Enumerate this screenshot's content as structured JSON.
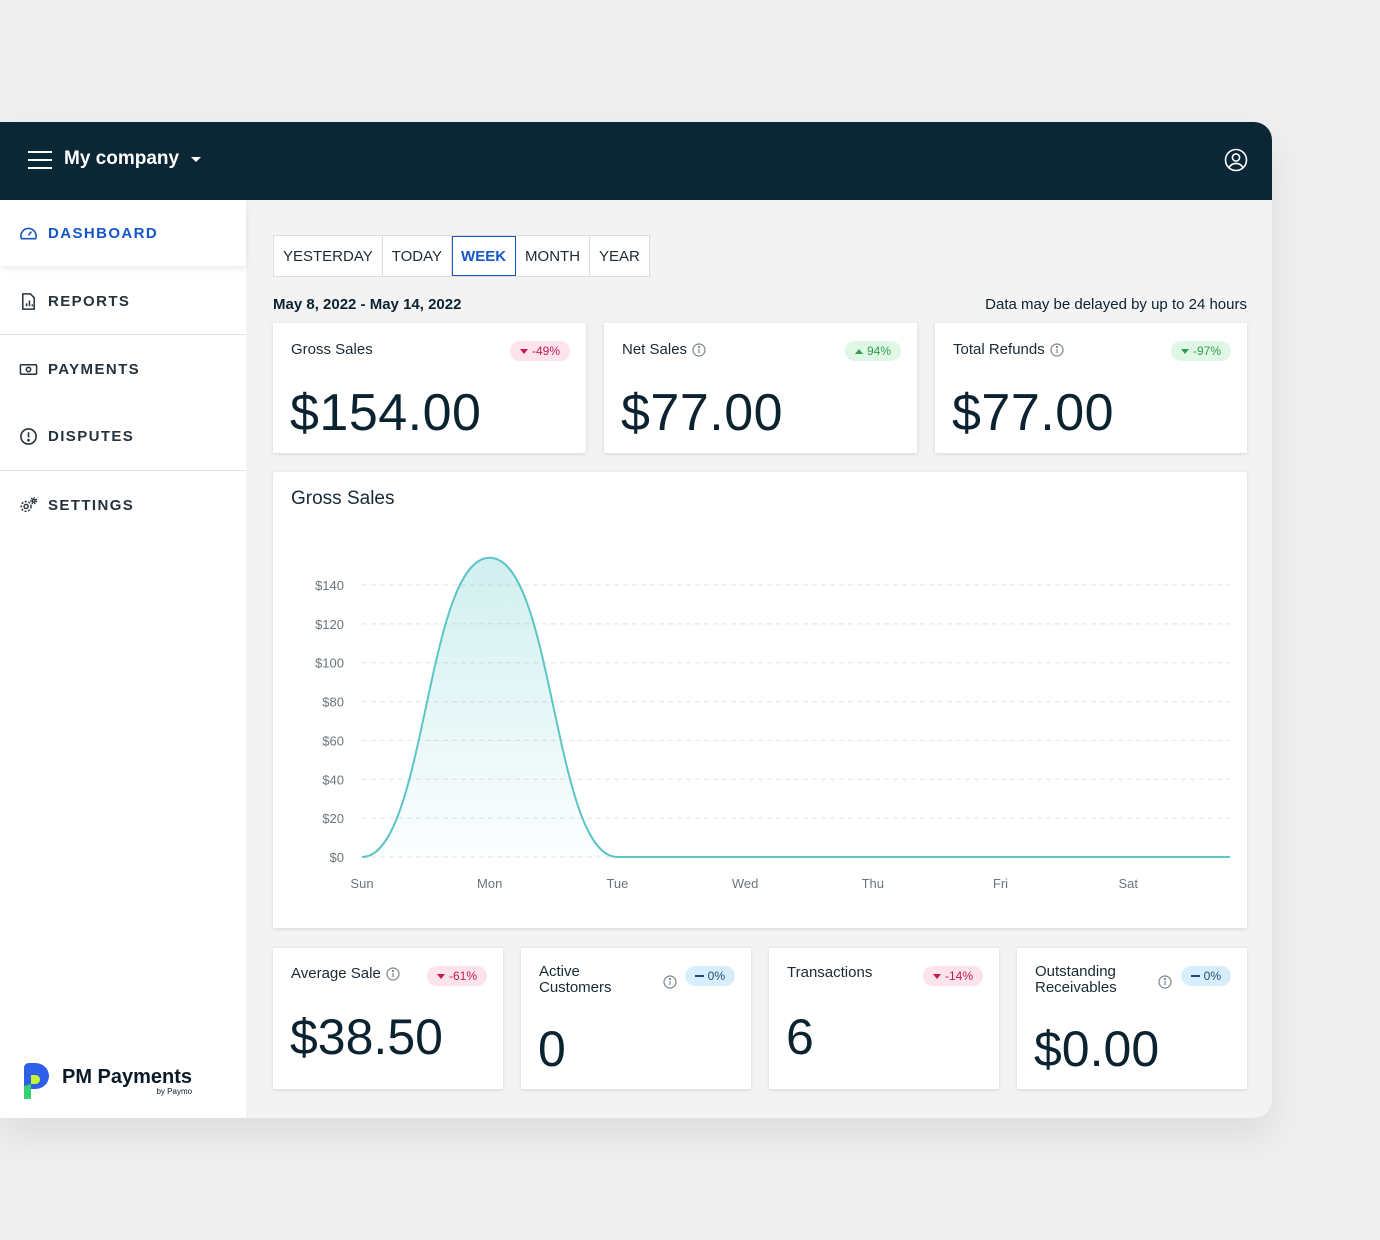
{
  "header": {
    "company": "My company"
  },
  "sidebar": {
    "items": [
      {
        "label": "DASHBOARD",
        "icon": "gauge-icon",
        "active": true
      },
      {
        "label": "REPORTS",
        "icon": "report-icon"
      },
      {
        "label": "PAYMENTS",
        "icon": "banknote-icon"
      },
      {
        "label": "DISPUTES",
        "icon": "alert-circle-icon"
      },
      {
        "label": "SETTINGS",
        "icon": "gears-icon"
      }
    ],
    "brand": {
      "name": "PM Payments",
      "sub": "by Paymo"
    }
  },
  "tabs": [
    "YESTERDAY",
    "TODAY",
    "WEEK",
    "MONTH",
    "YEAR"
  ],
  "active_tab": "WEEK",
  "date_range": "May 8, 2022 - May 14, 2022",
  "delay_note": "Data may be delayed by up to 24 hours",
  "kpis": [
    {
      "label": "Gross Sales",
      "badge": "-49%",
      "trend": "down",
      "color": "red",
      "value": "$154.00"
    },
    {
      "label": "Net Sales",
      "badge": "94%",
      "trend": "up",
      "color": "green",
      "value": "$77.00"
    },
    {
      "label": "Total Refunds",
      "badge": "-97%",
      "trend": "down",
      "color": "green",
      "value": "$77.00"
    }
  ],
  "stats": [
    {
      "label": "Average Sale",
      "badge": "-61%",
      "trend": "down",
      "color": "red",
      "value": "$38.50"
    },
    {
      "label": "Active Customers",
      "badge": "0%",
      "trend": "flat",
      "color": "blue",
      "value": "0"
    },
    {
      "label": "Transactions",
      "badge": "-14%",
      "trend": "down",
      "color": "red",
      "value": "6"
    },
    {
      "label": "Outstanding Receivables",
      "badge": "0%",
      "trend": "flat",
      "color": "blue",
      "value": "$0.00"
    }
  ],
  "chart_data": {
    "type": "area",
    "title": "Gross Sales",
    "categories": [
      "Sun",
      "Mon",
      "Tue",
      "Wed",
      "Thu",
      "Fri",
      "Sat"
    ],
    "values": [
      0,
      154,
      0,
      0,
      0,
      0,
      0
    ],
    "ylim": [
      0,
      140
    ],
    "yticks": [
      "$0",
      "$20",
      "$40",
      "$60",
      "$80",
      "$100",
      "$120",
      "$140"
    ],
    "grid": true,
    "line_color": "#5cc6c6"
  }
}
